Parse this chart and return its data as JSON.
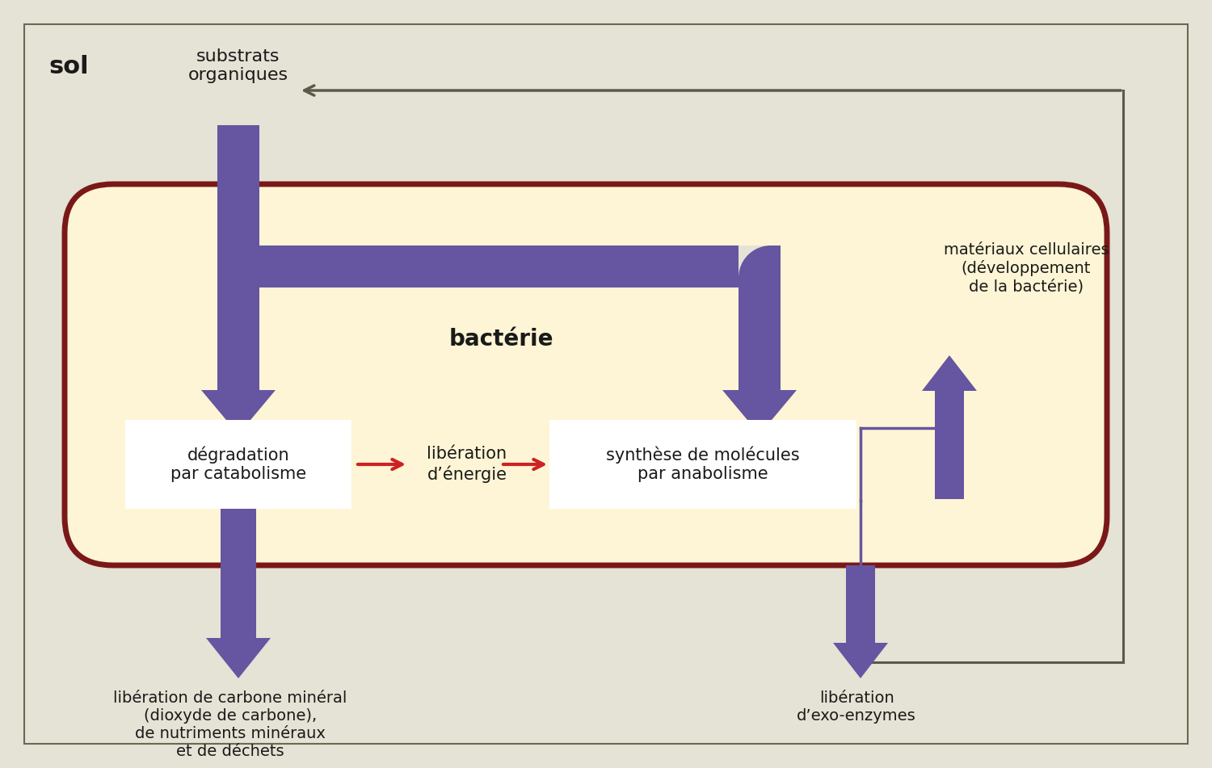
{
  "bg_color": "#e5e2d6",
  "cell_fill": "#fdf5d5",
  "cell_border": "#7a1818",
  "outer_border": "#6a6a52",
  "purple": "#6655a0",
  "red": "#cc2222",
  "gray": "#5a5a48",
  "text_color": "#1a1a18",
  "sol_label": "sol",
  "substrats_label": "substrats\norganiques",
  "bacterie_label": "bactérie",
  "box1_label": "dégradation\npar catabolisme",
  "box2_label": "libération\nd’énergie",
  "box3_label": "synthèse de molécules\npar anabolisme",
  "liberation_label": "libération de carbone minéral\n(dioxyde de carbone),\nde nutriments minéraux\net de déchets",
  "materiaux_label": "matériaux cellulaires\n(développement\nde la bactérie)",
  "exoenzymes_label": "libération\nd’exo-enzymes",
  "figw": 15.0,
  "figh": 9.51
}
